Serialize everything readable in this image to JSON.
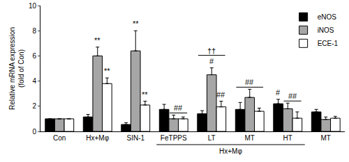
{
  "chart_data": {
    "type": "bar",
    "y_label": "Relative mRNA expression\n(fold of Con)",
    "categories": [
      "Con",
      "Hx+Mφ",
      "SIN-1",
      "FeTPPS",
      "LT",
      "MT",
      "HT",
      "MT"
    ],
    "series": [
      {
        "name": "eNOS",
        "color": "#000000",
        "values": [
          1,
          1.15,
          0.55,
          1.75,
          1.4,
          1.75,
          2.2,
          1.55
        ],
        "errors": [
          0,
          0.2,
          0.15,
          0.4,
          0.25,
          0.55,
          0.35,
          0.2
        ]
      },
      {
        "name": "iNOS",
        "color": "#a6a6a6",
        "values": [
          1,
          6.0,
          6.4,
          1.0,
          4.5,
          2.7,
          1.8,
          0.95
        ],
        "errors": [
          0,
          0.7,
          1.6,
          0.3,
          0.55,
          0.65,
          0.45,
          0.2
        ]
      },
      {
        "name": "ECE-1",
        "color": "#ffffff",
        "values": [
          1,
          3.8,
          2.1,
          1.0,
          1.95,
          1.6,
          1.05,
          1.05
        ],
        "errors": [
          0,
          0.45,
          0.3,
          0.15,
          0.45,
          0.25,
          0.5,
          0.15
        ]
      }
    ],
    "ylim": [
      0,
      10
    ],
    "yticks": [
      0,
      2,
      4,
      6,
      8,
      10
    ],
    "legend": "top right",
    "group_label": {
      "text": "Hx+Mφ",
      "from": 3,
      "to": 6
    },
    "annotations": [
      {
        "text": "**",
        "category": 1,
        "series": [
          "iNOS"
        ]
      },
      {
        "text": "**",
        "category": 1,
        "series": [
          "ECE-1"
        ]
      },
      {
        "text": "**",
        "category": 2,
        "series": [
          "iNOS"
        ]
      },
      {
        "text": "**",
        "category": 2,
        "series": [
          "ECE-1"
        ]
      },
      {
        "text": "##",
        "category": 3,
        "series": [
          "iNOS",
          "ECE-1"
        ]
      },
      {
        "text": "#",
        "category": 4,
        "series": [
          "iNOS"
        ]
      },
      {
        "text": "##",
        "category": 4,
        "series": [
          "ECE-1"
        ]
      },
      {
        "text": "††",
        "category": 4,
        "series": [
          "eNOS",
          "ECE-1"
        ]
      },
      {
        "text": "##",
        "category": 5,
        "series": [
          "eNOS",
          "ECE-1"
        ]
      },
      {
        "text": "#",
        "category": 6,
        "series": [
          "eNOS"
        ]
      },
      {
        "text": "##",
        "category": 6,
        "series": [
          "iNOS",
          "ECE-1"
        ]
      }
    ]
  }
}
